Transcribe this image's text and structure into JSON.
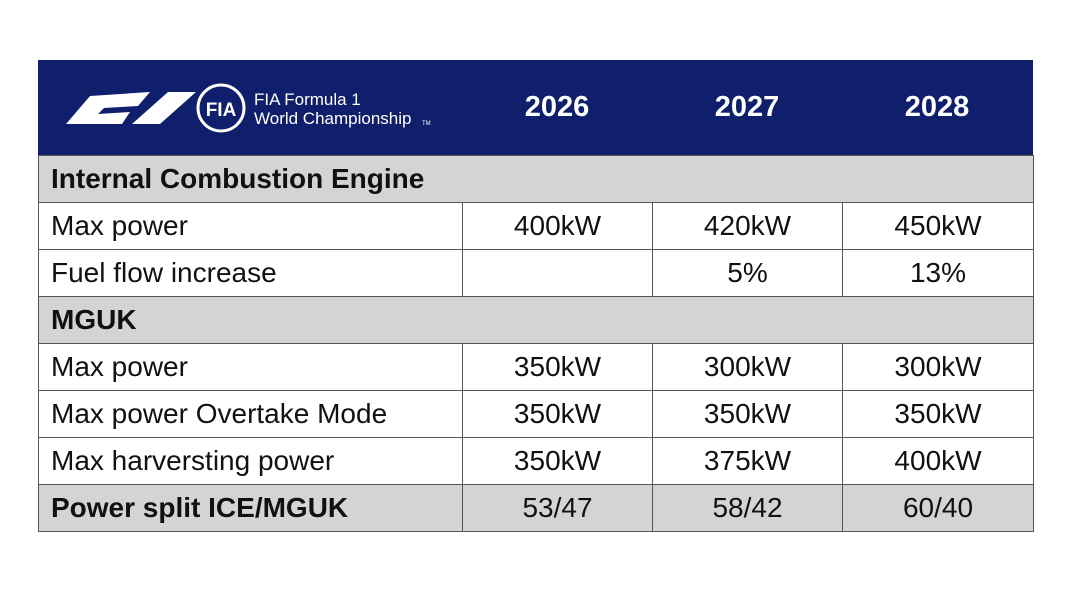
{
  "header": {
    "logo": {
      "badge": "FIA",
      "line1": "FIA Formula 1",
      "line2": "World Championship",
      "trademark": "TM"
    },
    "years": [
      "2026",
      "2027",
      "2028"
    ]
  },
  "table": {
    "rows": [
      {
        "section": "Internal Combustion Engine"
      },
      {
        "label": "Max power",
        "cells": [
          "400kW",
          "420kW",
          "450kW"
        ]
      },
      {
        "label": "Fuel flow increase",
        "cells": [
          null,
          "5%",
          "13%"
        ]
      },
      {
        "section": "MGUK"
      },
      {
        "label": "Max power",
        "cells": [
          "350kW",
          "300kW",
          "300kW"
        ]
      },
      {
        "label": "Max power Overtake Mode",
        "cells": [
          "350kW",
          "350kW",
          "350kW"
        ]
      },
      {
        "label": "Max harversting power",
        "cells": [
          "350kW",
          "375kW",
          "400kW"
        ]
      },
      {
        "label": "Power split ICE/MGUK",
        "cells": [
          "53/47",
          "58/42",
          "60/40"
        ],
        "highlight": true
      }
    ]
  }
}
